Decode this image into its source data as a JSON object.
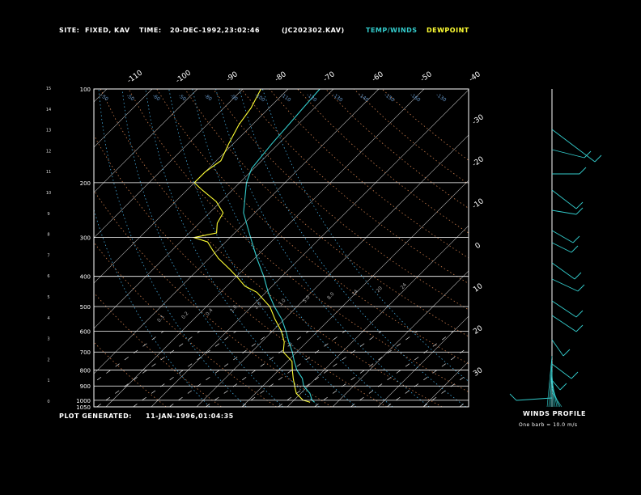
{
  "header": {
    "site_label": "SITE:",
    "site_value": "FIXED, KAV",
    "time_label": "TIME:",
    "time_value": "20-DEC-1992,23:02:46",
    "file_id": "(JC202302.KAV)",
    "legend_temp": "TEMP/WINDS",
    "legend_dew": "DEWPOINT"
  },
  "footer": {
    "plot_label": "PLOT GENERATED:",
    "plot_value": "11-JAN-1996,01:04:35",
    "winds_title": "WINDS PROFILE",
    "winds_note": "One barb = 10.0 m/s"
  },
  "colors": {
    "background": "#000000",
    "temp": "#33cccc",
    "dewpoint": "#ffff33",
    "isobar": "#ffffff",
    "dry_adiabat": "#c87a4a",
    "moist_adiabat": "#44aadd",
    "mixing_ratio": "#dd8844"
  },
  "chart_data": {
    "type": "line",
    "chart_kind": "skew-T log-P sounding",
    "pressure_levels": [
      1050,
      1000,
      900,
      800,
      700,
      600,
      500,
      400,
      300,
      200,
      100
    ],
    "height_ticks_km": [
      "0",
      "1",
      "2",
      "3",
      "4",
      "5",
      "6",
      "7",
      "8",
      "9",
      "10",
      "11",
      "12",
      "13",
      "14",
      "15"
    ],
    "temperature_ticks_top": [
      "-110",
      "-100",
      "-90",
      "-80",
      "-70",
      "-60",
      "-50",
      "-40"
    ],
    "temperature_ticks_right": [
      "-30",
      "-20",
      "-10",
      "0",
      "10",
      "20",
      "30"
    ],
    "dry_adiabat_labels": [
      "-50",
      "-50",
      "-60",
      "-50",
      "-80",
      "-90",
      "-100",
      "-110",
      "-120",
      "-130",
      "-140",
      "-150",
      "-160",
      "-130"
    ],
    "mixing_ratio_labels": [
      "0.1",
      "0.2",
      "0.4",
      "1.0",
      "2.0",
      "3.0",
      "5.0",
      "8.0",
      "14",
      "20",
      "24"
    ],
    "series": [
      {
        "name": "TEMP/WINDS",
        "points": [
          {
            "p": 1015,
            "t": -5
          },
          {
            "p": 1000,
            "t": -6
          },
          {
            "p": 950,
            "t": -8
          },
          {
            "p": 900,
            "t": -11
          },
          {
            "p": 850,
            "t": -13
          },
          {
            "p": 800,
            "t": -16
          },
          {
            "p": 750,
            "t": -18.5
          },
          {
            "p": 700,
            "t": -21
          },
          {
            "p": 650,
            "t": -24
          },
          {
            "p": 600,
            "t": -27
          },
          {
            "p": 550,
            "t": -30.5
          },
          {
            "p": 500,
            "t": -35
          },
          {
            "p": 450,
            "t": -39.5
          },
          {
            "p": 400,
            "t": -44
          },
          {
            "p": 350,
            "t": -49.5
          },
          {
            "p": 300,
            "t": -55.5
          },
          {
            "p": 250,
            "t": -62.5
          },
          {
            "p": 200,
            "t": -68.5
          },
          {
            "p": 180,
            "t": -70.5
          },
          {
            "p": 150,
            "t": -71.5
          },
          {
            "p": 130,
            "t": -72
          },
          {
            "p": 115,
            "t": -72.5
          },
          {
            "p": 100,
            "t": -73
          }
        ]
      },
      {
        "name": "DEWPOINT",
        "points": [
          {
            "p": 1015,
            "t": -6
          },
          {
            "p": 1000,
            "t": -8
          },
          {
            "p": 950,
            "t": -11
          },
          {
            "p": 900,
            "t": -13
          },
          {
            "p": 850,
            "t": -15
          },
          {
            "p": 800,
            "t": -17
          },
          {
            "p": 750,
            "t": -19
          },
          {
            "p": 700,
            "t": -23
          },
          {
            "p": 650,
            "t": -25
          },
          {
            "p": 600,
            "t": -28
          },
          {
            "p": 550,
            "t": -32
          },
          {
            "p": 500,
            "t": -36
          },
          {
            "p": 450,
            "t": -42
          },
          {
            "p": 430,
            "t": -46
          },
          {
            "p": 400,
            "t": -50
          },
          {
            "p": 380,
            "t": -53
          },
          {
            "p": 350,
            "t": -58
          },
          {
            "p": 330,
            "t": -61
          },
          {
            "p": 310,
            "t": -64
          },
          {
            "p": 300,
            "t": -68
          },
          {
            "p": 290,
            "t": -64
          },
          {
            "p": 270,
            "t": -66
          },
          {
            "p": 250,
            "t": -67
          },
          {
            "p": 230,
            "t": -71
          },
          {
            "p": 210,
            "t": -77
          },
          {
            "p": 200,
            "t": -80
          },
          {
            "p": 185,
            "t": -80
          },
          {
            "p": 170,
            "t": -79
          },
          {
            "p": 150,
            "t": -81
          },
          {
            "p": 130,
            "t": -83
          },
          {
            "p": 115,
            "t": -84
          },
          {
            "p": 100,
            "t": -86
          }
        ]
      }
    ]
  }
}
